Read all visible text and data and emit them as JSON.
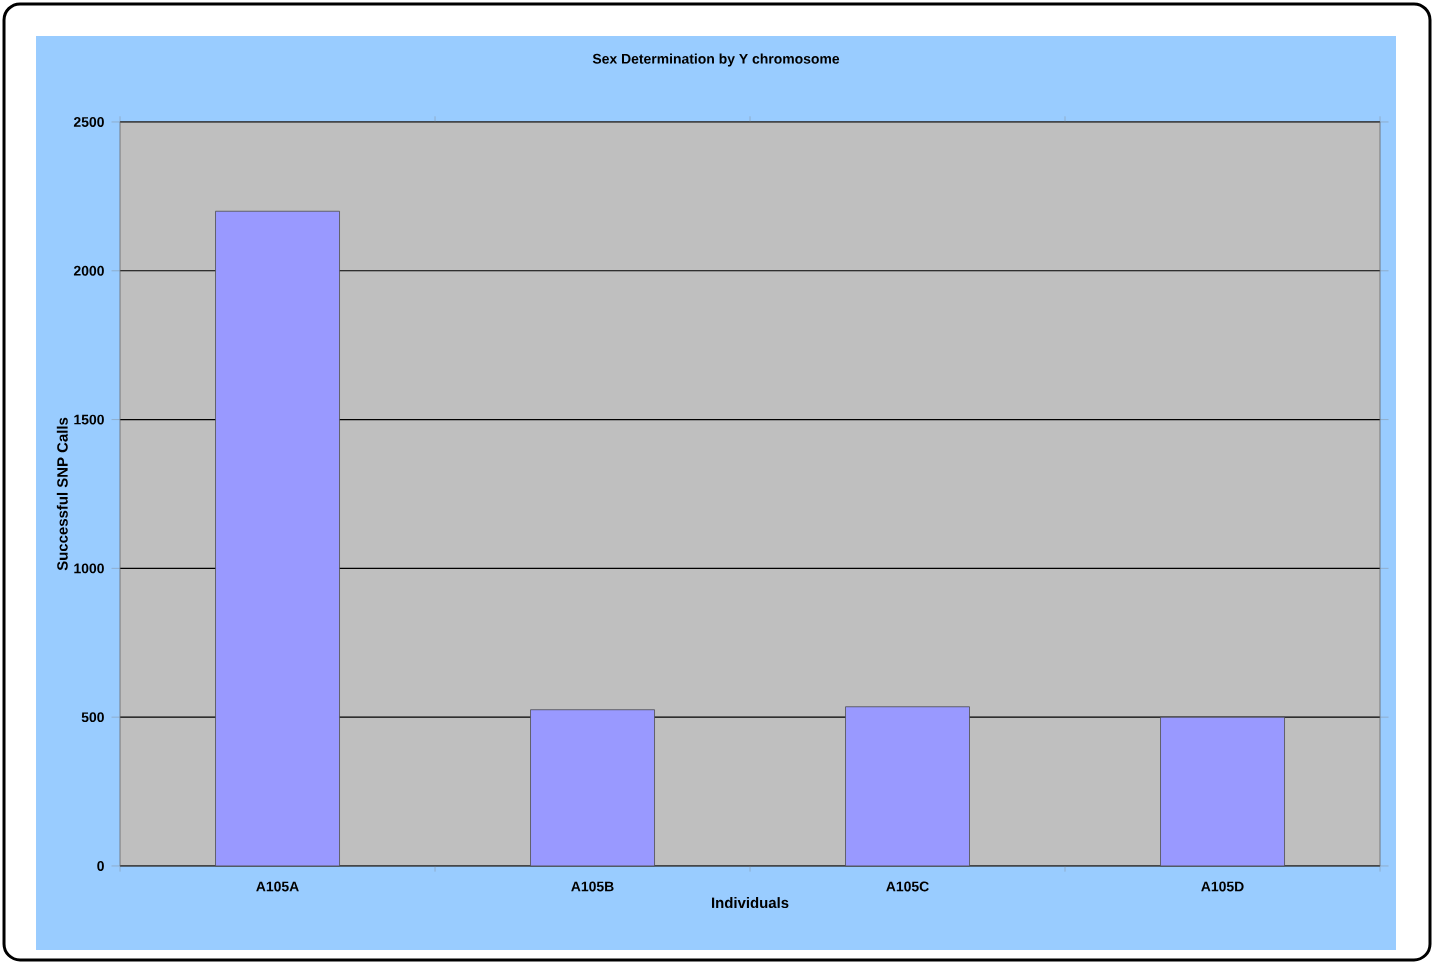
{
  "chart_data": {
    "type": "bar",
    "title": "Sex Determination by Y chromosome",
    "xlabel": "Individuals",
    "ylabel": "Successful SNP Calls",
    "categories": [
      "A105A",
      "A105B",
      "A105C",
      "A105D"
    ],
    "values": [
      2200,
      525,
      535,
      500
    ],
    "color": "#9999ff",
    "ylim": [
      0,
      2500
    ],
    "yticks": [
      0,
      500,
      1000,
      1500,
      2000,
      2500
    ],
    "grid": "y"
  }
}
